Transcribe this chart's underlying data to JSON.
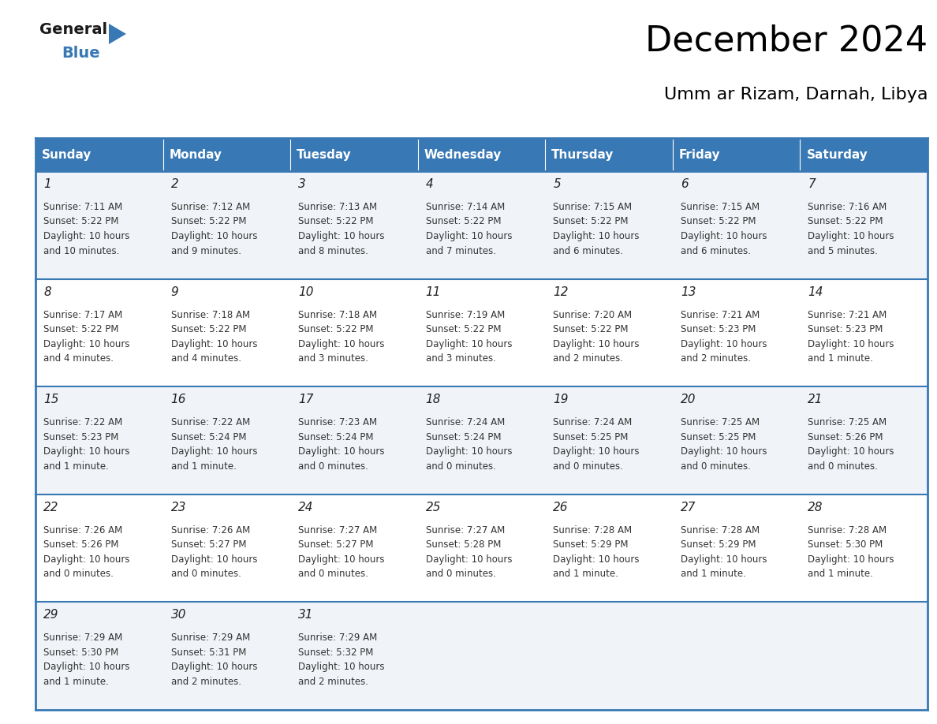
{
  "title": "December 2024",
  "subtitle": "Umm ar Rizam, Darnah, Libya",
  "header_color": "#3878b4",
  "header_text_color": "#ffffff",
  "cell_bg_odd": "#f0f4f8",
  "cell_bg_even": "#ffffff",
  "border_color": "#3878b4",
  "day_headers": [
    "Sunday",
    "Monday",
    "Tuesday",
    "Wednesday",
    "Thursday",
    "Friday",
    "Saturday"
  ],
  "days": [
    {
      "day": 1,
      "col": 0,
      "row": 0,
      "sunrise": "7:11 AM",
      "sunset": "5:22 PM",
      "dl1": "Daylight: 10 hours",
      "dl2": "and 10 minutes."
    },
    {
      "day": 2,
      "col": 1,
      "row": 0,
      "sunrise": "7:12 AM",
      "sunset": "5:22 PM",
      "dl1": "Daylight: 10 hours",
      "dl2": "and 9 minutes."
    },
    {
      "day": 3,
      "col": 2,
      "row": 0,
      "sunrise": "7:13 AM",
      "sunset": "5:22 PM",
      "dl1": "Daylight: 10 hours",
      "dl2": "and 8 minutes."
    },
    {
      "day": 4,
      "col": 3,
      "row": 0,
      "sunrise": "7:14 AM",
      "sunset": "5:22 PM",
      "dl1": "Daylight: 10 hours",
      "dl2": "and 7 minutes."
    },
    {
      "day": 5,
      "col": 4,
      "row": 0,
      "sunrise": "7:15 AM",
      "sunset": "5:22 PM",
      "dl1": "Daylight: 10 hours",
      "dl2": "and 6 minutes."
    },
    {
      "day": 6,
      "col": 5,
      "row": 0,
      "sunrise": "7:15 AM",
      "sunset": "5:22 PM",
      "dl1": "Daylight: 10 hours",
      "dl2": "and 6 minutes."
    },
    {
      "day": 7,
      "col": 6,
      "row": 0,
      "sunrise": "7:16 AM",
      "sunset": "5:22 PM",
      "dl1": "Daylight: 10 hours",
      "dl2": "and 5 minutes."
    },
    {
      "day": 8,
      "col": 0,
      "row": 1,
      "sunrise": "7:17 AM",
      "sunset": "5:22 PM",
      "dl1": "Daylight: 10 hours",
      "dl2": "and 4 minutes."
    },
    {
      "day": 9,
      "col": 1,
      "row": 1,
      "sunrise": "7:18 AM",
      "sunset": "5:22 PM",
      "dl1": "Daylight: 10 hours",
      "dl2": "and 4 minutes."
    },
    {
      "day": 10,
      "col": 2,
      "row": 1,
      "sunrise": "7:18 AM",
      "sunset": "5:22 PM",
      "dl1": "Daylight: 10 hours",
      "dl2": "and 3 minutes."
    },
    {
      "day": 11,
      "col": 3,
      "row": 1,
      "sunrise": "7:19 AM",
      "sunset": "5:22 PM",
      "dl1": "Daylight: 10 hours",
      "dl2": "and 3 minutes."
    },
    {
      "day": 12,
      "col": 4,
      "row": 1,
      "sunrise": "7:20 AM",
      "sunset": "5:22 PM",
      "dl1": "Daylight: 10 hours",
      "dl2": "and 2 minutes."
    },
    {
      "day": 13,
      "col": 5,
      "row": 1,
      "sunrise": "7:21 AM",
      "sunset": "5:23 PM",
      "dl1": "Daylight: 10 hours",
      "dl2": "and 2 minutes."
    },
    {
      "day": 14,
      "col": 6,
      "row": 1,
      "sunrise": "7:21 AM",
      "sunset": "5:23 PM",
      "dl1": "Daylight: 10 hours",
      "dl2": "and 1 minute."
    },
    {
      "day": 15,
      "col": 0,
      "row": 2,
      "sunrise": "7:22 AM",
      "sunset": "5:23 PM",
      "dl1": "Daylight: 10 hours",
      "dl2": "and 1 minute."
    },
    {
      "day": 16,
      "col": 1,
      "row": 2,
      "sunrise": "7:22 AM",
      "sunset": "5:24 PM",
      "dl1": "Daylight: 10 hours",
      "dl2": "and 1 minute."
    },
    {
      "day": 17,
      "col": 2,
      "row": 2,
      "sunrise": "7:23 AM",
      "sunset": "5:24 PM",
      "dl1": "Daylight: 10 hours",
      "dl2": "and 0 minutes."
    },
    {
      "day": 18,
      "col": 3,
      "row": 2,
      "sunrise": "7:24 AM",
      "sunset": "5:24 PM",
      "dl1": "Daylight: 10 hours",
      "dl2": "and 0 minutes."
    },
    {
      "day": 19,
      "col": 4,
      "row": 2,
      "sunrise": "7:24 AM",
      "sunset": "5:25 PM",
      "dl1": "Daylight: 10 hours",
      "dl2": "and 0 minutes."
    },
    {
      "day": 20,
      "col": 5,
      "row": 2,
      "sunrise": "7:25 AM",
      "sunset": "5:25 PM",
      "dl1": "Daylight: 10 hours",
      "dl2": "and 0 minutes."
    },
    {
      "day": 21,
      "col": 6,
      "row": 2,
      "sunrise": "7:25 AM",
      "sunset": "5:26 PM",
      "dl1": "Daylight: 10 hours",
      "dl2": "and 0 minutes."
    },
    {
      "day": 22,
      "col": 0,
      "row": 3,
      "sunrise": "7:26 AM",
      "sunset": "5:26 PM",
      "dl1": "Daylight: 10 hours",
      "dl2": "and 0 minutes."
    },
    {
      "day": 23,
      "col": 1,
      "row": 3,
      "sunrise": "7:26 AM",
      "sunset": "5:27 PM",
      "dl1": "Daylight: 10 hours",
      "dl2": "and 0 minutes."
    },
    {
      "day": 24,
      "col": 2,
      "row": 3,
      "sunrise": "7:27 AM",
      "sunset": "5:27 PM",
      "dl1": "Daylight: 10 hours",
      "dl2": "and 0 minutes."
    },
    {
      "day": 25,
      "col": 3,
      "row": 3,
      "sunrise": "7:27 AM",
      "sunset": "5:28 PM",
      "dl1": "Daylight: 10 hours",
      "dl2": "and 0 minutes."
    },
    {
      "day": 26,
      "col": 4,
      "row": 3,
      "sunrise": "7:28 AM",
      "sunset": "5:29 PM",
      "dl1": "Daylight: 10 hours",
      "dl2": "and 1 minute."
    },
    {
      "day": 27,
      "col": 5,
      "row": 3,
      "sunrise": "7:28 AM",
      "sunset": "5:29 PM",
      "dl1": "Daylight: 10 hours",
      "dl2": "and 1 minute."
    },
    {
      "day": 28,
      "col": 6,
      "row": 3,
      "sunrise": "7:28 AM",
      "sunset": "5:30 PM",
      "dl1": "Daylight: 10 hours",
      "dl2": "and 1 minute."
    },
    {
      "day": 29,
      "col": 0,
      "row": 4,
      "sunrise": "7:29 AM",
      "sunset": "5:30 PM",
      "dl1": "Daylight: 10 hours",
      "dl2": "and 1 minute."
    },
    {
      "day": 30,
      "col": 1,
      "row": 4,
      "sunrise": "7:29 AM",
      "sunset": "5:31 PM",
      "dl1": "Daylight: 10 hours",
      "dl2": "and 2 minutes."
    },
    {
      "day": 31,
      "col": 2,
      "row": 4,
      "sunrise": "7:29 AM",
      "sunset": "5:32 PM",
      "dl1": "Daylight: 10 hours",
      "dl2": "and 2 minutes."
    }
  ],
  "num_rows": 5,
  "num_cols": 7,
  "logo_general_color": "#1a1a1a",
  "logo_blue_color": "#3878b4",
  "logo_triangle_color": "#3878b4",
  "title_fontsize": 32,
  "subtitle_fontsize": 16,
  "header_fontsize": 11,
  "daynum_fontsize": 11,
  "info_fontsize": 8.5
}
